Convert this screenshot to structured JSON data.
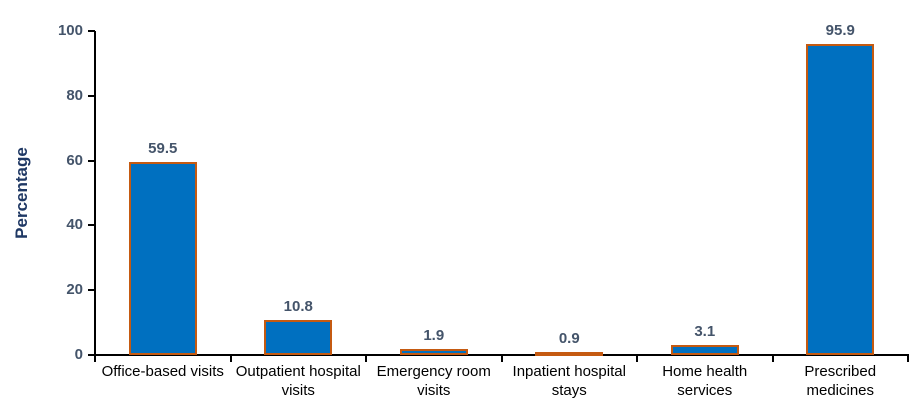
{
  "chart_data": {
    "type": "bar",
    "title": "",
    "ylabel": "Percentage",
    "xlabel": "",
    "categories": [
      "Office-based visits",
      "Outpatient hospital visits",
      "Emergency room visits",
      "Inpatient hospital stays",
      "Home health services",
      "Prescribed medicines"
    ],
    "values": [
      59.5,
      10.8,
      1.9,
      0.9,
      3.1,
      95.9
    ],
    "value_labels": [
      "59.5",
      "10.8",
      "1.9",
      "0.9",
      "3.1",
      "95.9"
    ],
    "ylim": [
      0,
      100
    ],
    "yticks": [
      0,
      20,
      40,
      60,
      80,
      100
    ],
    "grid": false,
    "legend": false,
    "colors": {
      "bar_fill": "#0070C0",
      "bar_border": "#C55A11",
      "tick_label": "#44546A",
      "axis_title": "#1F3864",
      "axis_line": "#000000",
      "category_label": "#000000"
    }
  }
}
